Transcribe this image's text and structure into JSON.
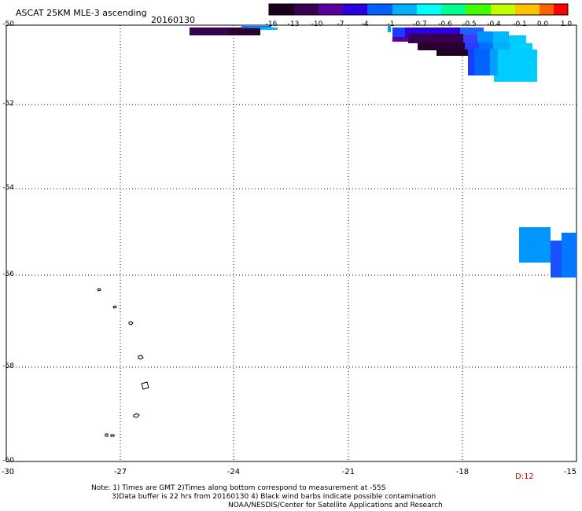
{
  "header": {
    "title": "ASCAT 25KM MLE-3 ascending",
    "date": "20160130"
  },
  "colorbar": {
    "labels": [
      "-16",
      "-13",
      "-10",
      "-7",
      "-4",
      "-1",
      "-0.7",
      "-0.6",
      "-0.5",
      "-0.4",
      "-0.1",
      "0.0",
      "1.0"
    ],
    "colors": [
      "#1a001a",
      "#3a0050",
      "#5a00a0",
      "#2a00e0",
      "#0060ff",
      "#00b0ff",
      "#00ffff",
      "#00ff90",
      "#40ff00",
      "#c0ff00",
      "#ffc000",
      "#ff6000",
      "#ff0000"
    ]
  },
  "axes": {
    "lat_labels": [
      "-50",
      "-52",
      "-54",
      "-56",
      "-58",
      "-60"
    ],
    "lon_labels": [
      "-30",
      "-27",
      "-24",
      "-21",
      "-18",
      "-15"
    ]
  },
  "stamp": "D:12",
  "notes": {
    "line1": "Note: 1) Times are GMT 2)Times along bottom correspond to measurement at -55S",
    "line2": "3)Data buffer is 22 hrs from 20160130 4) Black wind barbs indicate possible contamination",
    "line3": "NOAA/NESDIS/Center for Satellite Applications and Research"
  }
}
